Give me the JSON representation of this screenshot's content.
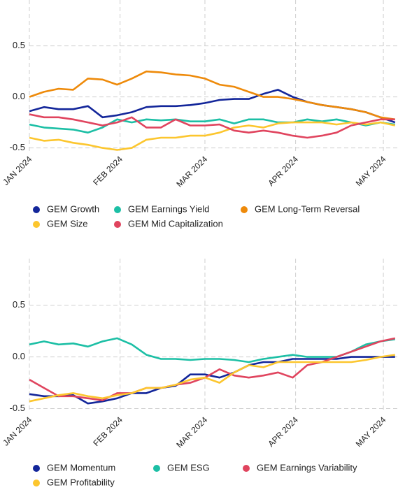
{
  "chart_data": [
    {
      "type": "line",
      "x": [
        0,
        5,
        10,
        15,
        20,
        25,
        30,
        35,
        40,
        45,
        50,
        55,
        60,
        65,
        70,
        75,
        80,
        85,
        90,
        95,
        100,
        105,
        110,
        115,
        120,
        125
      ],
      "xlim": [
        0,
        126
      ],
      "xticks": [
        {
          "value": 0,
          "label": "JAN 2024"
        },
        {
          "value": 31,
          "label": "FEB 2024"
        },
        {
          "value": 60,
          "label": "MAR 2024"
        },
        {
          "value": 91,
          "label": "APR 2024"
        },
        {
          "value": 121,
          "label": "MAY 2024"
        }
      ],
      "ylim": [
        -0.53,
        0.95
      ],
      "yticks": [
        0.5,
        {
          "value": 0,
          "label": "0.0"
        },
        -0.5
      ],
      "grid": true,
      "series": [
        {
          "name": "GEM Growth",
          "color": "#13269a",
          "values": [
            -0.14,
            -0.1,
            -0.12,
            -0.12,
            -0.09,
            -0.2,
            -0.18,
            -0.15,
            -0.1,
            -0.09,
            -0.09,
            -0.08,
            -0.06,
            -0.03,
            -0.02,
            -0.02,
            0.03,
            0.07,
            0.0,
            -0.05,
            -0.08,
            -0.1,
            -0.12,
            -0.15,
            -0.2,
            -0.25
          ]
        },
        {
          "name": "GEM Earnings Yield",
          "color": "#1cbfa5",
          "values": [
            -0.27,
            -0.3,
            -0.31,
            -0.32,
            -0.35,
            -0.3,
            -0.22,
            -0.25,
            -0.22,
            -0.23,
            -0.22,
            -0.24,
            -0.24,
            -0.22,
            -0.26,
            -0.22,
            -0.22,
            -0.25,
            -0.25,
            -0.22,
            -0.24,
            -0.22,
            -0.25,
            -0.28,
            -0.25,
            -0.27
          ]
        },
        {
          "name": "GEM Long-Term Reversal",
          "color": "#ee8a0a",
          "values": [
            0.0,
            0.05,
            0.08,
            0.07,
            0.18,
            0.17,
            0.12,
            0.18,
            0.25,
            0.24,
            0.22,
            0.21,
            0.18,
            0.12,
            0.1,
            0.05,
            0.0,
            0.0,
            -0.02,
            -0.05,
            -0.08,
            -0.1,
            -0.12,
            -0.15,
            -0.2,
            -0.22
          ]
        },
        {
          "name": "GEM Size",
          "color": "#fcc62e",
          "values": [
            -0.4,
            -0.43,
            -0.42,
            -0.45,
            -0.47,
            -0.5,
            -0.52,
            -0.5,
            -0.42,
            -0.4,
            -0.4,
            -0.38,
            -0.38,
            -0.35,
            -0.3,
            -0.28,
            -0.3,
            -0.26,
            -0.25,
            -0.25,
            -0.25,
            -0.27,
            -0.25,
            -0.27,
            -0.25,
            -0.28
          ]
        },
        {
          "name": "GEM Mid Capitalization",
          "color": "#e0445e",
          "values": [
            -0.17,
            -0.2,
            -0.2,
            -0.22,
            -0.25,
            -0.28,
            -0.25,
            -0.2,
            -0.3,
            -0.3,
            -0.22,
            -0.28,
            -0.28,
            -0.27,
            -0.33,
            -0.35,
            -0.33,
            -0.35,
            -0.38,
            -0.4,
            -0.38,
            -0.35,
            -0.28,
            -0.25,
            -0.22,
            -0.22
          ]
        }
      ]
    },
    {
      "type": "line",
      "x": [
        0,
        5,
        10,
        15,
        20,
        25,
        30,
        35,
        40,
        45,
        50,
        55,
        60,
        65,
        70,
        75,
        80,
        85,
        90,
        95,
        100,
        105,
        110,
        115,
        120,
        125
      ],
      "xlim": [
        0,
        126
      ],
      "xticks": [
        {
          "value": 0,
          "label": "JAN 2024"
        },
        {
          "value": 31,
          "label": "FEB 2024"
        },
        {
          "value": 60,
          "label": "MAR 2024"
        },
        {
          "value": 91,
          "label": "APR 2024"
        },
        {
          "value": 121,
          "label": "MAY 2024"
        }
      ],
      "ylim": [
        -0.53,
        0.95
      ],
      "yticks": [
        0.5,
        {
          "value": 0,
          "label": "0.0"
        },
        -0.5
      ],
      "grid": true,
      "series": [
        {
          "name": "GEM Momentum",
          "color": "#13269a",
          "values": [
            -0.36,
            -0.38,
            -0.38,
            -0.37,
            -0.45,
            -0.43,
            -0.4,
            -0.35,
            -0.35,
            -0.3,
            -0.28,
            -0.17,
            -0.17,
            -0.2,
            -0.15,
            -0.08,
            -0.05,
            -0.05,
            -0.02,
            -0.02,
            -0.02,
            -0.02,
            0.0,
            0.0,
            0.0,
            0.0
          ]
        },
        {
          "name": "GEM ESG",
          "color": "#1cbfa5",
          "values": [
            0.12,
            0.15,
            0.12,
            0.13,
            0.1,
            0.15,
            0.18,
            0.12,
            0.02,
            -0.02,
            -0.02,
            -0.03,
            -0.02,
            -0.02,
            -0.03,
            -0.05,
            -0.02,
            0.0,
            0.02,
            0.0,
            0.0,
            0.0,
            0.05,
            0.12,
            0.15,
            0.17
          ]
        },
        {
          "name": "GEM Earnings Variability",
          "color": "#e0445e",
          "values": [
            -0.22,
            -0.3,
            -0.38,
            -0.38,
            -0.4,
            -0.42,
            -0.35,
            -0.35,
            -0.3,
            -0.3,
            -0.27,
            -0.25,
            -0.2,
            -0.12,
            -0.18,
            -0.2,
            -0.18,
            -0.15,
            -0.2,
            -0.08,
            -0.05,
            0.0,
            0.05,
            0.1,
            0.15,
            0.18
          ]
        },
        {
          "name": "GEM Profitability",
          "color": "#fcc62e",
          "values": [
            -0.43,
            -0.4,
            -0.37,
            -0.35,
            -0.38,
            -0.4,
            -0.37,
            -0.35,
            -0.3,
            -0.3,
            -0.27,
            -0.22,
            -0.2,
            -0.25,
            -0.15,
            -0.08,
            -0.1,
            -0.05,
            -0.05,
            -0.05,
            -0.05,
            -0.05,
            -0.05,
            -0.03,
            0.0,
            0.02
          ]
        }
      ]
    }
  ]
}
